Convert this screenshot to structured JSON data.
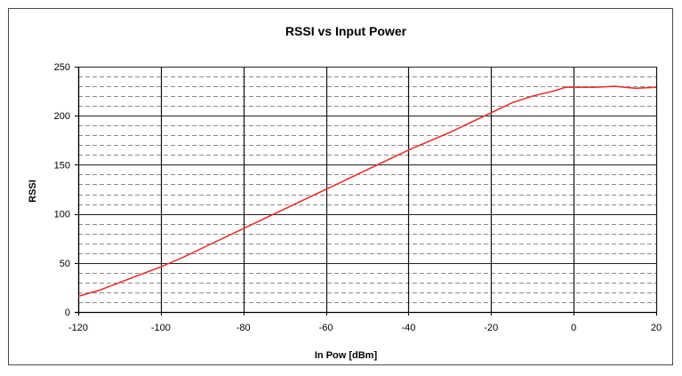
{
  "chart_data": {
    "type": "line",
    "title": "RSSI vs Input Power",
    "xlabel": "In Pow [dBm]",
    "ylabel": "RSSI",
    "xlim": [
      -120,
      20
    ],
    "ylim": [
      0,
      250
    ],
    "x_ticks": [
      -120,
      -100,
      -80,
      -60,
      -40,
      -20,
      0,
      20
    ],
    "y_ticks": [
      0,
      50,
      100,
      150,
      200,
      250
    ],
    "y_minor_step": 10,
    "grid": "on",
    "legend": "none",
    "series": [
      {
        "color": "#e8342c",
        "x": [
          -120,
          -115,
          -110,
          -105,
          -100,
          -95,
          -90,
          -85,
          -80,
          -75,
          -70,
          -65,
          -60,
          -55,
          -50,
          -45,
          -40,
          -35,
          -30,
          -25,
          -20,
          -15,
          -10,
          -5,
          -2,
          0,
          5,
          10,
          15,
          20
        ],
        "y": [
          16,
          22,
          30,
          38,
          46,
          55,
          65,
          75,
          85,
          95,
          105,
          115,
          125,
          135,
          145,
          155,
          165,
          174,
          183,
          193,
          203,
          213,
          220,
          225,
          229,
          229,
          229,
          230,
          228,
          229
        ]
      }
    ]
  }
}
